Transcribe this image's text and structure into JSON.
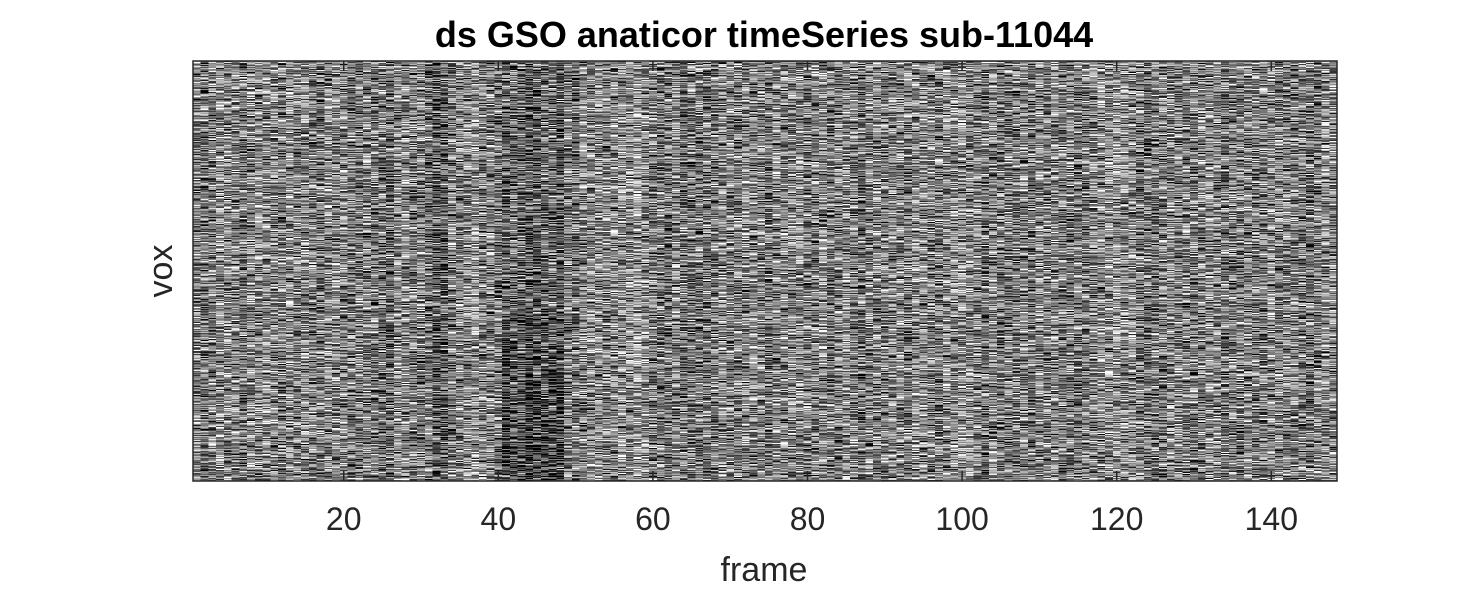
{
  "chart_data": {
    "type": "heatmap",
    "title": "ds GSO anaticor timeSeries sub-11044",
    "xlabel": "frame",
    "ylabel": "vox",
    "xlim": [
      0.5,
      148.5
    ],
    "x_ticks": [
      20,
      40,
      60,
      80,
      100,
      120,
      140
    ],
    "x_tick_labels": [
      "20",
      "40",
      "60",
      "80",
      "100",
      "120",
      "140"
    ],
    "y_ticks": [],
    "colormap": "gray",
    "n_frames": 148,
    "n_rows": 420,
    "content_note": "dense noise-like grayscale intensity values; darker vertical bands near frames 26, 31-33, 41-48"
  }
}
